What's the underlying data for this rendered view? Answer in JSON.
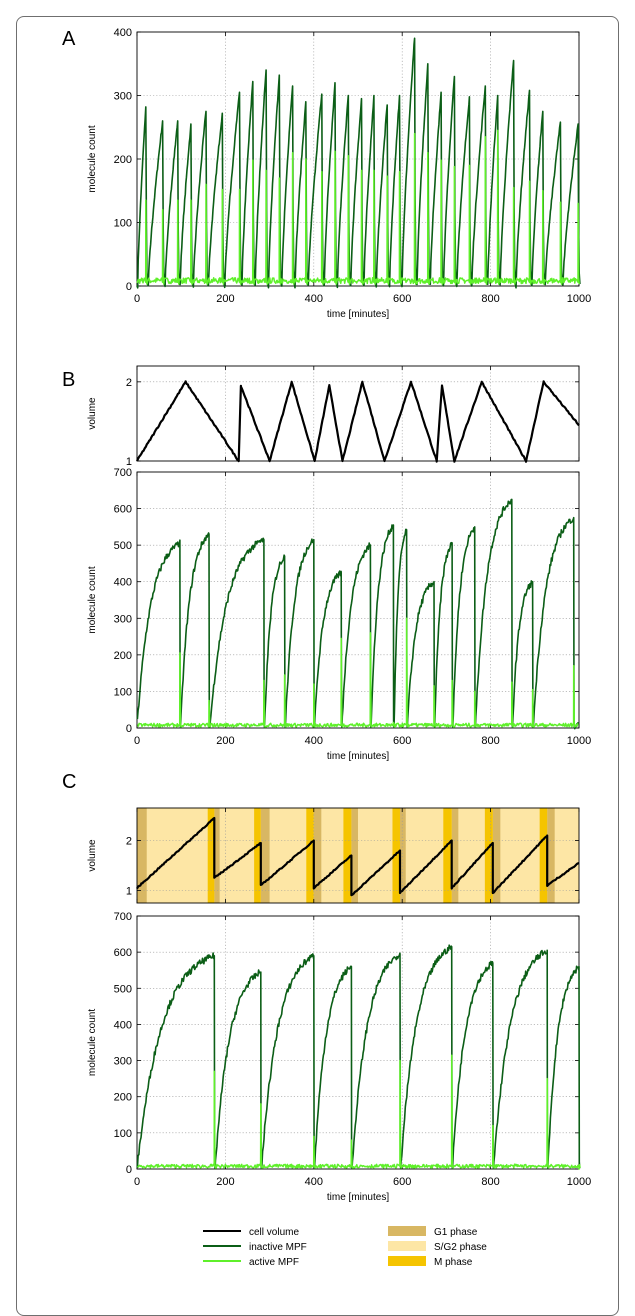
{
  "panels": {
    "a": {
      "letter": "A"
    },
    "b": {
      "letter": "B"
    },
    "c": {
      "letter": "C"
    }
  },
  "chart_data": [
    {
      "id": "panel-a-molecules",
      "type": "line",
      "xlabel": "time [minutes]",
      "ylabel": "molecule count",
      "xlim": [
        0,
        1000
      ],
      "ylim": [
        0,
        400
      ],
      "xticks": [
        0,
        200,
        400,
        600,
        800,
        1000
      ],
      "yticks": [
        0,
        100,
        200,
        300,
        400
      ],
      "grid": true,
      "inactive_peaks": [
        [
          20,
          282
        ],
        [
          58,
          260
        ],
        [
          92,
          260
        ],
        [
          122,
          255
        ],
        [
          156,
          275
        ],
        [
          193,
          272
        ],
        [
          232,
          305
        ],
        [
          262,
          322
        ],
        [
          292,
          340
        ],
        [
          322,
          332
        ],
        [
          352,
          315
        ],
        [
          382,
          290
        ],
        [
          418,
          302
        ],
        [
          448,
          320
        ],
        [
          478,
          300
        ],
        [
          508,
          295
        ],
        [
          536,
          300
        ],
        [
          566,
          285
        ],
        [
          594,
          300
        ],
        [
          628,
          390
        ],
        [
          658,
          350
        ],
        [
          688,
          305
        ],
        [
          718,
          330
        ],
        [
          752,
          298
        ],
        [
          788,
          315
        ],
        [
          816,
          300
        ],
        [
          852,
          355
        ],
        [
          888,
          308
        ],
        [
          918,
          275
        ],
        [
          958,
          258
        ],
        [
          998,
          255
        ]
      ],
      "active_peaks": [
        [
          20,
          135
        ],
        [
          58,
          120
        ],
        [
          92,
          135
        ],
        [
          122,
          135
        ],
        [
          156,
          160
        ],
        [
          193,
          152
        ],
        [
          232,
          152
        ],
        [
          262,
          198
        ],
        [
          292,
          182
        ],
        [
          322,
          170
        ],
        [
          352,
          210
        ],
        [
          382,
          200
        ],
        [
          418,
          180
        ],
        [
          448,
          212
        ],
        [
          478,
          205
        ],
        [
          508,
          182
        ],
        [
          536,
          182
        ],
        [
          566,
          173
        ],
        [
          594,
          180
        ],
        [
          628,
          240
        ],
        [
          658,
          210
        ],
        [
          688,
          198
        ],
        [
          718,
          188
        ],
        [
          752,
          190
        ],
        [
          788,
          235
        ],
        [
          816,
          245
        ],
        [
          852,
          155
        ],
        [
          888,
          165
        ],
        [
          918,
          150
        ],
        [
          958,
          132
        ],
        [
          998,
          130
        ]
      ],
      "series": [
        {
          "name": "inactive MPF",
          "color": "#0b5e16"
        },
        {
          "name": "active MPF",
          "color": "#5ff02a"
        }
      ]
    },
    {
      "id": "panel-b-volume",
      "type": "line",
      "xlabel": "",
      "ylabel": "volume",
      "xlim": [
        0,
        1000
      ],
      "ylim": [
        1,
        2.2
      ],
      "yticks": [
        1,
        2
      ],
      "grid": true,
      "divisions": [
        [
          0,
          1.0
        ],
        [
          110,
          2.0
        ],
        [
          230,
          1.0
        ],
        [
          235,
          1.95
        ],
        [
          300,
          1.0
        ],
        [
          350,
          2.0
        ],
        [
          402,
          1.0
        ],
        [
          435,
          1.95
        ],
        [
          465,
          1.0
        ],
        [
          510,
          2.0
        ],
        [
          560,
          1.0
        ],
        [
          620,
          2.0
        ],
        [
          678,
          1.0
        ],
        [
          690,
          1.95
        ],
        [
          718,
          1.0
        ],
        [
          780,
          2.0
        ],
        [
          880,
          1.0
        ],
        [
          920,
          2.0
        ],
        [
          1000,
          1.45
        ]
      ],
      "series": [
        {
          "name": "cell volume",
          "color": "#000000"
        }
      ]
    },
    {
      "id": "panel-b-molecules",
      "type": "line",
      "xlabel": "time [minutes]",
      "ylabel": "molecule count",
      "xlim": [
        0,
        1000
      ],
      "ylim": [
        0,
        700
      ],
      "xticks": [
        0,
        200,
        400,
        600,
        800,
        1000
      ],
      "yticks": [
        0,
        100,
        200,
        300,
        400,
        500,
        600,
        700
      ],
      "grid": true,
      "divisions": [
        [
          97,
          505,
          205
        ],
        [
          163,
          530,
          75
        ],
        [
          287,
          515,
          130
        ],
        [
          334,
          470,
          145
        ],
        [
          400,
          515,
          120
        ],
        [
          462,
          425,
          245
        ],
        [
          528,
          500,
          260
        ],
        [
          580,
          555,
          15
        ],
        [
          610,
          540,
          300
        ],
        [
          672,
          400,
          115
        ],
        [
          713,
          505,
          130
        ],
        [
          764,
          550,
          100
        ],
        [
          848,
          625,
          125
        ],
        [
          895,
          400,
          105
        ],
        [
          988,
          575,
          170
        ]
      ],
      "series": [
        {
          "name": "inactive MPF",
          "color": "#0b5e16"
        },
        {
          "name": "active MPF",
          "color": "#5ff02a"
        }
      ]
    },
    {
      "id": "panel-c-volume",
      "type": "line",
      "xlabel": "",
      "ylabel": "volume",
      "xlim": [
        0,
        1000
      ],
      "ylim": [
        0.75,
        2.65
      ],
      "yticks": [
        1,
        2
      ],
      "grid": true,
      "divisions": [
        [
          0,
          1.05
        ],
        [
          175,
          2.45
        ],
        [
          175,
          1.25
        ],
        [
          280,
          1.95
        ],
        [
          280,
          1.1
        ],
        [
          400,
          2.0
        ],
        [
          400,
          1.05
        ],
        [
          485,
          1.7
        ],
        [
          485,
          0.9
        ],
        [
          595,
          1.8
        ],
        [
          595,
          0.95
        ],
        [
          712,
          2.0
        ],
        [
          712,
          1.05
        ],
        [
          805,
          1.95
        ],
        [
          805,
          0.95
        ],
        [
          928,
          2.1
        ],
        [
          928,
          1.1
        ],
        [
          1000,
          1.55
        ]
      ],
      "g1_phase": [
        [
          0,
          22
        ],
        [
          175,
          187
        ],
        [
          280,
          300
        ],
        [
          400,
          417
        ],
        [
          485,
          500
        ],
        [
          595,
          608
        ],
        [
          712,
          727
        ],
        [
          805,
          822
        ],
        [
          928,
          945
        ]
      ],
      "m_phase": [
        [
          160,
          175
        ],
        [
          265,
          280
        ],
        [
          383,
          400
        ],
        [
          467,
          485
        ],
        [
          578,
          595
        ],
        [
          693,
          712
        ],
        [
          787,
          805
        ],
        [
          911,
          928
        ]
      ],
      "series": [
        {
          "name": "cell volume",
          "color": "#000000"
        },
        {
          "name": "G1 phase",
          "color": "#d8b763"
        },
        {
          "name": "S/G2 phase",
          "color": "#fde6a5"
        },
        {
          "name": "M phase",
          "color": "#f5c400"
        }
      ]
    },
    {
      "id": "panel-c-molecules",
      "type": "line",
      "xlabel": "time [minutes]",
      "ylabel": "molecule count",
      "xlim": [
        0,
        1000
      ],
      "ylim": [
        0,
        700
      ],
      "xticks": [
        0,
        200,
        400,
        600,
        800,
        1000
      ],
      "yticks": [
        0,
        100,
        200,
        300,
        400,
        500,
        600,
        700
      ],
      "grid": true,
      "divisions": [
        [
          175,
          590,
          270
        ],
        [
          280,
          545,
          180
        ],
        [
          400,
          590,
          90
        ],
        [
          485,
          560,
          80
        ],
        [
          595,
          595,
          300
        ],
        [
          712,
          615,
          315
        ],
        [
          805,
          570,
          120
        ],
        [
          928,
          605,
          250
        ],
        [
          1000,
          560,
          0
        ]
      ],
      "series": [
        {
          "name": "inactive MPF",
          "color": "#0b5e16"
        },
        {
          "name": "active MPF",
          "color": "#5ff02a"
        }
      ]
    }
  ],
  "legend": [
    {
      "label": "cell volume",
      "kind": "line",
      "color": "#000000"
    },
    {
      "label": "inactive MPF",
      "kind": "line",
      "color": "#0b5e16"
    },
    {
      "label": "active MPF",
      "kind": "line",
      "color": "#5ff02a"
    },
    {
      "label": "G1 phase",
      "kind": "box",
      "color": "#d8b763"
    },
    {
      "label": "S/G2 phase",
      "kind": "box",
      "color": "#fde6a5"
    },
    {
      "label": "M phase",
      "kind": "box",
      "color": "#f5c400"
    }
  ]
}
